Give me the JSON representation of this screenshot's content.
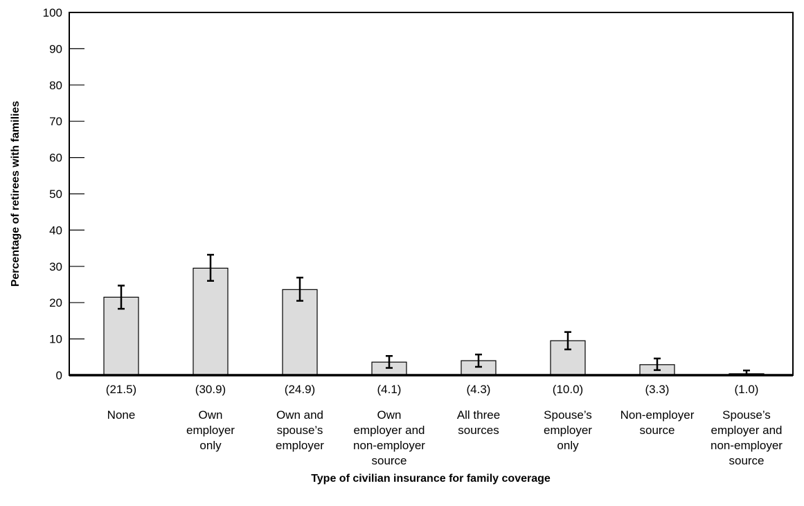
{
  "chart_data": {
    "type": "bar",
    "categories": [
      [
        "None"
      ],
      [
        "Own",
        "employer",
        "only"
      ],
      [
        "Own and",
        "spouse’s",
        "employer"
      ],
      [
        "Own",
        "employer and",
        "non-employer",
        "source"
      ],
      [
        "All three",
        "sources"
      ],
      [
        "Spouse’s",
        "employer",
        "only"
      ],
      [
        "Non-employer",
        "source"
      ],
      [
        "Spouse’s",
        "employer and",
        "non-employer",
        "source"
      ]
    ],
    "n_labels": [
      "(21.5)",
      "(30.9)",
      "(24.9)",
      "(4.1)",
      "(4.3)",
      "(10.0)",
      "(3.3)",
      "(1.0)"
    ],
    "values": [
      21.5,
      29.5,
      23.6,
      3.6,
      4.0,
      9.5,
      2.9,
      0.4
    ],
    "error_low": [
      18.3,
      26.0,
      20.5,
      2.0,
      2.3,
      7.1,
      1.4,
      0.0
    ],
    "error_high": [
      24.7,
      33.2,
      26.9,
      5.3,
      5.7,
      11.9,
      4.6,
      1.3
    ],
    "ylim": [
      0,
      100
    ],
    "yticks": [
      0,
      10,
      20,
      30,
      40,
      50,
      60,
      70,
      80,
      90,
      100
    ],
    "xlabel": "Type of civilian insurance for family coverage",
    "ylabel": "Percentage of retirees with families",
    "grid": false,
    "colors": {
      "bar_fill": "#dcdcdc",
      "bar_stroke": "#000000",
      "axis": "#000000"
    }
  }
}
